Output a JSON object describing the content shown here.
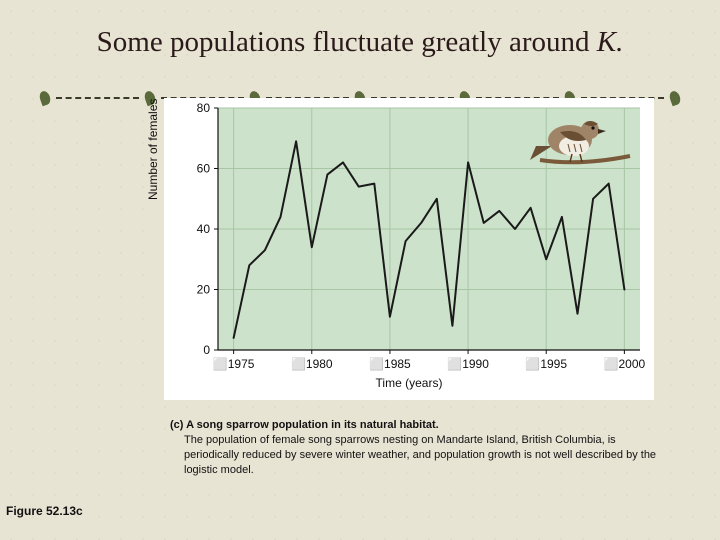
{
  "title_prefix": "Some populations fluctuate greatly around ",
  "title_italic": "K.",
  "chart": {
    "type": "line",
    "background_color": "#ffffff",
    "plot_bg": "#cde2cb",
    "grid_color": "#a7c6a5",
    "line_color": "#1a1a1a",
    "line_width": 2,
    "xlabel": "Time (years)",
    "ylabel": "Number of females",
    "label_fontsize": 12,
    "xlim": [
      1974,
      2001
    ],
    "ylim": [
      0,
      80
    ],
    "yticks": [
      0,
      20,
      40,
      60,
      80
    ],
    "xticks": [
      1975,
      1980,
      1985,
      1990,
      1995,
      2000
    ],
    "xtick_prefix": "⬜",
    "x_values": [
      1975,
      1976,
      1977,
      1978,
      1979,
      1980,
      1981,
      1982,
      1983,
      1984,
      1985,
      1986,
      1987,
      1988,
      1989,
      1990,
      1991,
      1992,
      1993,
      1994,
      1995,
      1996,
      1997,
      1998,
      1999,
      2000
    ],
    "y_values": [
      4,
      28,
      33,
      44,
      69,
      34,
      58,
      62,
      54,
      55,
      11,
      36,
      42,
      50,
      8,
      62,
      42,
      46,
      40,
      47,
      30,
      44,
      12,
      50,
      55,
      20
    ]
  },
  "bird": {
    "body_color": "#a08468",
    "wing_color": "#6b4f34",
    "belly_color": "#f2ede2"
  },
  "caption": {
    "lead": "(c) A song sparrow population in its natural habitat.",
    "body": " The population of female song sparrows nesting on Mandarte Island, British Columbia, is periodically reduced by severe winter weather, and population growth is not well described by the logistic model."
  },
  "figure_label": "Figure 52.13c"
}
